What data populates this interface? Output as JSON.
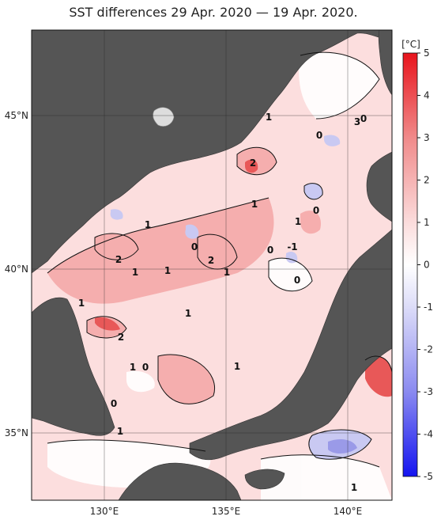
{
  "title": "SST differences 29 Apr. 2020 — 19 Apr. 2020.",
  "colorbar": {
    "unit": "[°C]",
    "ticks": [
      "5",
      "4",
      "3",
      "2",
      "1",
      "0",
      "-1",
      "-2",
      "-3",
      "-4",
      "-5"
    ],
    "colors": {
      "max_warm": "#e8141c",
      "mid_warm": "#f08a8a",
      "light_warm": "#fbdcdc",
      "neutral": "#ffffff",
      "light_cool": "#dcdcf8",
      "mid_cool": "#8a8af0",
      "max_cool": "#1414f0"
    }
  },
  "map": {
    "land_color": "#555555",
    "lat_labels": [
      "45°N",
      "40°N",
      "35°N"
    ],
    "lon_labels": [
      "130°E",
      "135°E",
      "140°E"
    ],
    "contour_labels": [
      {
        "text": "1"
      },
      {
        "text": "0"
      },
      {
        "text": "3"
      },
      {
        "text": "0"
      },
      {
        "text": "2"
      },
      {
        "text": "1"
      },
      {
        "text": "0"
      },
      {
        "text": "1"
      },
      {
        "text": "1"
      },
      {
        "text": "0"
      },
      {
        "text": "0"
      },
      {
        "text": "-1"
      },
      {
        "text": "2"
      },
      {
        "text": "2"
      },
      {
        "text": "1"
      },
      {
        "text": "1"
      },
      {
        "text": "1"
      },
      {
        "text": "0"
      },
      {
        "text": "1"
      },
      {
        "text": "1"
      },
      {
        "text": "2"
      },
      {
        "text": "1"
      },
      {
        "text": "0"
      },
      {
        "text": "1"
      },
      {
        "text": "0"
      },
      {
        "text": "1"
      },
      {
        "text": "1"
      }
    ]
  }
}
